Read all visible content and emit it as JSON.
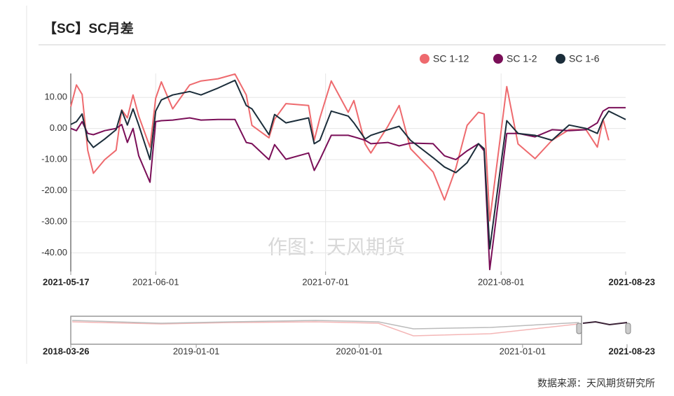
{
  "chart_data": {
    "type": "line",
    "title": "【SC】SC月差",
    "watermark": "作图：天风期货",
    "source": "数据来源：天风期货研究所",
    "legend": "top-right",
    "grid": true,
    "x": [
      "2021-05-17",
      "2021-05-18",
      "2021-05-19",
      "2021-05-20",
      "2021-05-21",
      "2021-05-23",
      "2021-05-25",
      "2021-05-26",
      "2021-05-27",
      "2021-05-28",
      "2021-05-29",
      "2021-05-31",
      "2021-06-01",
      "2021-06-02",
      "2021-06-04",
      "2021-06-07",
      "2021-06-09",
      "2021-06-12",
      "2021-06-15",
      "2021-06-17",
      "2021-06-18",
      "2021-06-21",
      "2021-06-22",
      "2021-06-24",
      "2021-06-28",
      "2021-06-29",
      "2021-06-30",
      "2021-07-02",
      "2021-07-05",
      "2021-07-06",
      "2021-07-08",
      "2021-07-09",
      "2021-07-12",
      "2021-07-14",
      "2021-07-16",
      "2021-07-20",
      "2021-07-22",
      "2021-07-24",
      "2021-07-26",
      "2021-07-28",
      "2021-07-29",
      "2021-07-30",
      "2021-08-02",
      "2021-08-04",
      "2021-08-07",
      "2021-08-10",
      "2021-08-13",
      "2021-08-16",
      "2021-08-18",
      "2021-08-19",
      "2021-08-20",
      "2021-08-23"
    ],
    "series": [
      {
        "name": "SC 1-12",
        "color": "#ee6a6e",
        "values": [
          7,
          14,
          11,
          -7,
          -14.4,
          -10,
          -7,
          6,
          3.4,
          10.8,
          4,
          -6,
          9.7,
          15,
          6.3,
          14,
          15.3,
          16,
          17.5,
          10.8,
          1,
          -3,
          3,
          8,
          7.4,
          -3.8,
          3.4,
          15.3,
          5.2,
          9,
          -5,
          -7.9,
          0.7,
          7.4,
          -6.5,
          -14,
          -23,
          -12.8,
          1,
          5.2,
          4.7,
          -29.7,
          13.5,
          -5,
          -9.7,
          -3.8,
          -0.4,
          -0.4,
          -6,
          3,
          -3.8,
          null
        ]
      },
      {
        "name": "SC 1-2",
        "color": "#7a0f58",
        "values": [
          0,
          -0.7,
          2.2,
          -1.6,
          -2,
          -0.7,
          0,
          1.3,
          -4.5,
          0,
          -8.8,
          -17.3,
          2.2,
          2.5,
          2.7,
          3.4,
          2.7,
          2.9,
          2.9,
          -4.5,
          -4.9,
          -10,
          -5.2,
          -9.9,
          -7.9,
          -13.5,
          -10,
          -2.2,
          -2.2,
          -2.7,
          -3.8,
          -4.9,
          -4.5,
          -5.6,
          -4.7,
          -4.9,
          -8.8,
          -10,
          -7.2,
          -4.9,
          -7.2,
          -45.4,
          -1.6,
          -1.6,
          -2.7,
          -0.4,
          -0.7,
          -0.4,
          1.8,
          5.6,
          6.7,
          6.7
        ]
      },
      {
        "name": "SC 1-6",
        "color": "#1b2d3a",
        "values": [
          1.3,
          2.2,
          4.7,
          -3.8,
          -6.1,
          -3.4,
          -0.4,
          5.8,
          1.1,
          6.3,
          1.1,
          -10,
          5.6,
          9.2,
          10.8,
          11.9,
          10.8,
          13,
          15.5,
          7.4,
          6.3,
          -2,
          4.5,
          1.8,
          3.4,
          -4.9,
          -3.8,
          5.6,
          4,
          1.8,
          -3.4,
          -2.2,
          -0.4,
          0.7,
          -3.8,
          -9.4,
          -12.4,
          -14.2,
          -11,
          -4.9,
          -6.5,
          -38.7,
          2.5,
          -1.6,
          -2.2,
          -3.8,
          1.1,
          0,
          -1.6,
          2.9,
          5.6,
          2.9
        ]
      }
    ],
    "xlim": [
      "2021-05-17",
      "2021-08-23"
    ],
    "xticks": [
      "2021-05-17",
      "2021-06-01",
      "2021-07-01",
      "2021-08-01",
      "2021-08-23"
    ],
    "ylim": [
      -46,
      17.7
    ],
    "yticks": [
      {
        "value": 10,
        "label": "10.00"
      },
      {
        "value": 0,
        "label": "0.00"
      },
      {
        "value": -10,
        "label": "-10.00"
      },
      {
        "value": -20,
        "label": "-20.00"
      },
      {
        "value": -30,
        "label": "-30.00"
      },
      {
        "value": -40,
        "label": "-40.00"
      }
    ],
    "navigator": {
      "xlim": [
        "2018-03-26",
        "2021-08-23"
      ],
      "xticks": [
        "2018-03-26",
        "2019-01-01",
        "2020-01-01",
        "2021-01-01",
        "2021-08-23"
      ]
    }
  }
}
